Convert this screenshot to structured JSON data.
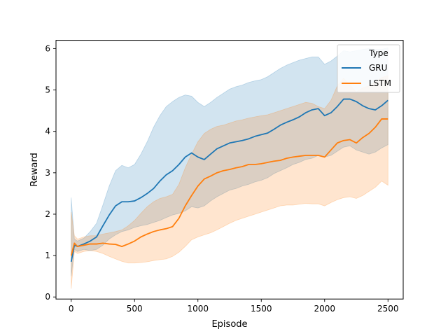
{
  "chart_data": {
    "type": "line",
    "xlabel": "Episode",
    "ylabel": "Reward",
    "xlim": [
      -120,
      2620
    ],
    "ylim": [
      -0.05,
      6.2
    ],
    "xticks": [
      0,
      500,
      1000,
      1500,
      2000,
      2500
    ],
    "yticks": [
      0,
      1,
      2,
      3,
      4,
      5,
      6
    ],
    "grid": false,
    "legend": {
      "title": "Type",
      "placement": "top-right"
    },
    "series": [
      {
        "name": "GRU",
        "color": "#1f77b4",
        "x": [
          0,
          25,
          50,
          100,
          150,
          200,
          250,
          300,
          350,
          400,
          450,
          500,
          550,
          600,
          650,
          700,
          750,
          800,
          850,
          900,
          950,
          1000,
          1050,
          1100,
          1150,
          1200,
          1250,
          1300,
          1350,
          1400,
          1450,
          1500,
          1550,
          1600,
          1650,
          1700,
          1750,
          1800,
          1850,
          1900,
          1950,
          2000,
          2050,
          2100,
          2150,
          2200,
          2250,
          2300,
          2350,
          2400,
          2450,
          2500
        ],
        "mean": [
          0.85,
          1.25,
          1.22,
          1.28,
          1.35,
          1.45,
          1.72,
          1.98,
          2.2,
          2.3,
          2.3,
          2.32,
          2.4,
          2.5,
          2.62,
          2.8,
          2.95,
          3.05,
          3.2,
          3.38,
          3.48,
          3.38,
          3.32,
          3.45,
          3.58,
          3.65,
          3.72,
          3.75,
          3.78,
          3.82,
          3.88,
          3.92,
          3.96,
          4.05,
          4.15,
          4.22,
          4.28,
          4.35,
          4.45,
          4.52,
          4.55,
          4.38,
          4.45,
          4.6,
          4.78,
          4.78,
          4.72,
          4.62,
          4.55,
          4.52,
          4.62,
          4.75
        ],
        "lower": [
          0.5,
          1.15,
          1.1,
          1.15,
          1.12,
          1.15,
          1.25,
          1.4,
          1.5,
          1.58,
          1.62,
          1.68,
          1.72,
          1.75,
          1.8,
          1.85,
          1.92,
          1.98,
          2.02,
          2.08,
          2.18,
          2.15,
          2.2,
          2.32,
          2.42,
          2.5,
          2.58,
          2.62,
          2.68,
          2.72,
          2.78,
          2.82,
          2.88,
          2.98,
          3.05,
          3.12,
          3.2,
          3.25,
          3.32,
          3.35,
          3.42,
          3.38,
          3.42,
          3.52,
          3.62,
          3.65,
          3.55,
          3.5,
          3.45,
          3.5,
          3.6,
          3.68
        ],
        "upper": [
          2.4,
          1.4,
          1.35,
          1.42,
          1.58,
          1.78,
          2.22,
          2.68,
          3.05,
          3.18,
          3.12,
          3.2,
          3.45,
          3.75,
          4.1,
          4.38,
          4.6,
          4.72,
          4.82,
          4.88,
          4.85,
          4.7,
          4.6,
          4.7,
          4.82,
          4.92,
          5.02,
          5.08,
          5.12,
          5.18,
          5.22,
          5.25,
          5.32,
          5.42,
          5.52,
          5.6,
          5.66,
          5.72,
          5.76,
          5.8,
          5.8,
          5.62,
          5.7,
          5.82,
          5.95,
          5.92,
          5.95,
          5.98,
          6.0,
          5.98,
          5.98,
          6.02
        ]
      },
      {
        "name": "LSTM",
        "color": "#ff7f0e",
        "x": [
          0,
          25,
          50,
          100,
          150,
          200,
          250,
          300,
          350,
          400,
          450,
          500,
          550,
          600,
          650,
          700,
          750,
          800,
          850,
          900,
          950,
          1000,
          1050,
          1100,
          1150,
          1200,
          1250,
          1300,
          1350,
          1400,
          1450,
          1500,
          1550,
          1600,
          1650,
          1700,
          1750,
          1800,
          1850,
          1900,
          1950,
          2000,
          2050,
          2100,
          2150,
          2200,
          2250,
          2300,
          2350,
          2400,
          2450,
          2500
        ],
        "mean": [
          1.0,
          1.3,
          1.22,
          1.25,
          1.28,
          1.28,
          1.3,
          1.28,
          1.27,
          1.22,
          1.28,
          1.35,
          1.45,
          1.52,
          1.58,
          1.62,
          1.65,
          1.7,
          1.9,
          2.2,
          2.45,
          2.68,
          2.85,
          2.92,
          3.0,
          3.05,
          3.08,
          3.12,
          3.15,
          3.2,
          3.2,
          3.22,
          3.25,
          3.28,
          3.3,
          3.35,
          3.38,
          3.4,
          3.42,
          3.42,
          3.42,
          3.38,
          3.55,
          3.72,
          3.78,
          3.8,
          3.72,
          3.85,
          3.95,
          4.1,
          4.3,
          4.3
        ],
        "lower": [
          0.2,
          1.1,
          1.05,
          1.1,
          1.12,
          1.1,
          1.05,
          0.98,
          0.92,
          0.86,
          0.82,
          0.82,
          0.83,
          0.85,
          0.88,
          0.9,
          0.92,
          0.98,
          1.08,
          1.22,
          1.38,
          1.45,
          1.5,
          1.55,
          1.62,
          1.7,
          1.78,
          1.85,
          1.9,
          1.95,
          2.0,
          2.05,
          2.1,
          2.15,
          2.2,
          2.22,
          2.22,
          2.24,
          2.26,
          2.25,
          2.25,
          2.2,
          2.28,
          2.35,
          2.4,
          2.42,
          2.38,
          2.45,
          2.55,
          2.65,
          2.8,
          2.7
        ],
        "upper": [
          2.05,
          1.48,
          1.4,
          1.45,
          1.48,
          1.48,
          1.52,
          1.55,
          1.58,
          1.62,
          1.72,
          1.85,
          2.02,
          2.18,
          2.3,
          2.38,
          2.42,
          2.48,
          2.72,
          3.12,
          3.45,
          3.75,
          3.95,
          4.05,
          4.12,
          4.15,
          4.2,
          4.25,
          4.28,
          4.32,
          4.35,
          4.38,
          4.4,
          4.45,
          4.5,
          4.55,
          4.6,
          4.65,
          4.7,
          4.68,
          4.6,
          4.55,
          4.75,
          5.1,
          5.28,
          5.12,
          4.95,
          5.05,
          5.1,
          5.2,
          5.3,
          5.35
        ]
      }
    ]
  }
}
